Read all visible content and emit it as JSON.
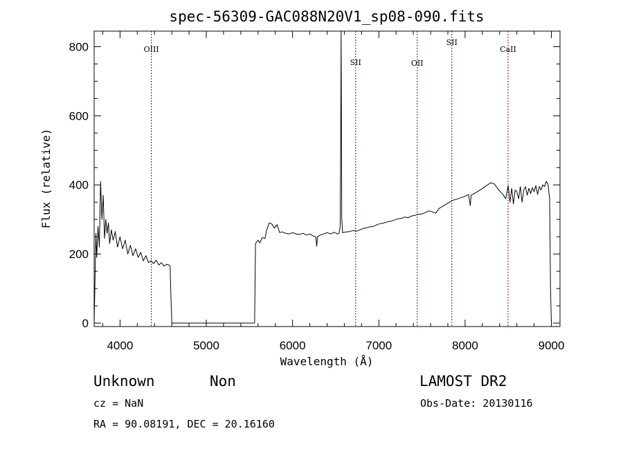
{
  "chart_data": {
    "type": "line",
    "title": "spec-56309-GAC088N20V1_sp08-090.fits",
    "xlabel": "Wavelength (Å)",
    "ylabel": "Flux (relative)",
    "xlim": [
      3700,
      9100
    ],
    "ylim": [
      -10,
      845
    ],
    "x_ticks": [
      "4000",
      "5000",
      "6000",
      "7000",
      "8000",
      "9000"
    ],
    "y_ticks": [
      "0",
      "200",
      "400",
      "600",
      "800"
    ],
    "line_color": "#000000",
    "marker_color": "#8b0000",
    "lines": [
      {
        "name": "OIII",
        "wavelength": 4363,
        "label_flux": 785
      },
      {
        "name": "SII",
        "wavelength": 6731,
        "label_flux": 747
      },
      {
        "name": "OII",
        "wavelength": 7445,
        "label_flux": 745
      },
      {
        "name": "SII",
        "wavelength": 7846,
        "label_flux": 805
      },
      {
        "name": "CaII",
        "wavelength": 8498,
        "label_flux": 785
      }
    ],
    "spectrum": [
      [
        3700,
        0
      ],
      [
        3710,
        120
      ],
      [
        3720,
        260
      ],
      [
        3730,
        190
      ],
      [
        3745,
        280
      ],
      [
        3760,
        220
      ],
      [
        3775,
        410
      ],
      [
        3790,
        300
      ],
      [
        3805,
        370
      ],
      [
        3820,
        245
      ],
      [
        3835,
        300
      ],
      [
        3850,
        260
      ],
      [
        3865,
        290
      ],
      [
        3880,
        230
      ],
      [
        3900,
        270
      ],
      [
        3920,
        240
      ],
      [
        3945,
        265
      ],
      [
        3970,
        220
      ],
      [
        4000,
        250
      ],
      [
        4030,
        215
      ],
      [
        4060,
        240
      ],
      [
        4090,
        200
      ],
      [
        4120,
        225
      ],
      [
        4150,
        195
      ],
      [
        4180,
        215
      ],
      [
        4210,
        190
      ],
      [
        4240,
        205
      ],
      [
        4270,
        180
      ],
      [
        4300,
        195
      ],
      [
        4330,
        175
      ],
      [
        4360,
        180
      ],
      [
        4390,
        172
      ],
      [
        4420,
        182
      ],
      [
        4450,
        168
      ],
      [
        4480,
        175
      ],
      [
        4510,
        165
      ],
      [
        4540,
        170
      ],
      [
        4570,
        168
      ],
      [
        4580,
        165
      ],
      [
        4590,
        80
      ],
      [
        4600,
        0
      ],
      [
        5560,
        0
      ],
      [
        5570,
        230
      ],
      [
        5600,
        240
      ],
      [
        5620,
        232
      ],
      [
        5650,
        248
      ],
      [
        5680,
        245
      ],
      [
        5700,
        270
      ],
      [
        5730,
        290
      ],
      [
        5760,
        287
      ],
      [
        5790,
        275
      ],
      [
        5820,
        285
      ],
      [
        5850,
        262
      ],
      [
        5880,
        264
      ],
      [
        5920,
        260
      ],
      [
        5960,
        258
      ],
      [
        6000,
        262
      ],
      [
        6040,
        258
      ],
      [
        6080,
        257
      ],
      [
        6120,
        260
      ],
      [
        6160,
        255
      ],
      [
        6200,
        258
      ],
      [
        6240,
        252
      ],
      [
        6270,
        250
      ],
      [
        6280,
        222
      ],
      [
        6290,
        250
      ],
      [
        6320,
        255
      ],
      [
        6360,
        258
      ],
      [
        6400,
        262
      ],
      [
        6440,
        258
      ],
      [
        6480,
        263
      ],
      [
        6520,
        258
      ],
      [
        6540,
        260
      ],
      [
        6552,
        280
      ],
      [
        6558,
        530
      ],
      [
        6563,
        845
      ],
      [
        6570,
        300
      ],
      [
        6580,
        262
      ],
      [
        6620,
        264
      ],
      [
        6660,
        265
      ],
      [
        6700,
        268
      ],
      [
        6740,
        266
      ],
      [
        6780,
        270
      ],
      [
        6820,
        274
      ],
      [
        6860,
        276
      ],
      [
        6900,
        279
      ],
      [
        6940,
        280
      ],
      [
        6980,
        285
      ],
      [
        7020,
        288
      ],
      [
        7060,
        290
      ],
      [
        7100,
        293
      ],
      [
        7140,
        295
      ],
      [
        7180,
        298
      ],
      [
        7220,
        302
      ],
      [
        7260,
        303
      ],
      [
        7300,
        307
      ],
      [
        7340,
        305
      ],
      [
        7380,
        310
      ],
      [
        7420,
        312
      ],
      [
        7460,
        315
      ],
      [
        7500,
        316
      ],
      [
        7540,
        320
      ],
      [
        7580,
        325
      ],
      [
        7620,
        322
      ],
      [
        7660,
        318
      ],
      [
        7700,
        332
      ],
      [
        7740,
        338
      ],
      [
        7780,
        344
      ],
      [
        7820,
        350
      ],
      [
        7860,
        356
      ],
      [
        7900,
        358
      ],
      [
        7940,
        362
      ],
      [
        7980,
        365
      ],
      [
        8040,
        372
      ],
      [
        8060,
        340
      ],
      [
        8070,
        370
      ],
      [
        8100,
        374
      ],
      [
        8140,
        380
      ],
      [
        8180,
        386
      ],
      [
        8220,
        393
      ],
      [
        8260,
        400
      ],
      [
        8300,
        406
      ],
      [
        8340,
        402
      ],
      [
        8370,
        392
      ],
      [
        8400,
        382
      ],
      [
        8440,
        372
      ],
      [
        8470,
        360
      ],
      [
        8500,
        398
      ],
      [
        8520,
        350
      ],
      [
        8540,
        390
      ],
      [
        8560,
        345
      ],
      [
        8580,
        385
      ],
      [
        8600,
        380
      ],
      [
        8620,
        360
      ],
      [
        8640,
        395
      ],
      [
        8660,
        350
      ],
      [
        8680,
        385
      ],
      [
        8700,
        395
      ],
      [
        8720,
        370
      ],
      [
        8740,
        390
      ],
      [
        8760,
        375
      ],
      [
        8780,
        392
      ],
      [
        8800,
        380
      ],
      [
        8820,
        398
      ],
      [
        8840,
        372
      ],
      [
        8860,
        395
      ],
      [
        8880,
        385
      ],
      [
        8900,
        400
      ],
      [
        8920,
        395
      ],
      [
        8940,
        410
      ],
      [
        8960,
        402
      ],
      [
        8980,
        360
      ],
      [
        8990,
        100
      ],
      [
        9000,
        0
      ]
    ]
  },
  "info": {
    "classification": "Unknown",
    "subclass": "Non",
    "survey": "LAMOST DR2",
    "redshift": "cz = NaN",
    "obs_date": "Obs-Date: 20130116",
    "coords": "RA =  90.08191, DEC =  20.16160"
  }
}
